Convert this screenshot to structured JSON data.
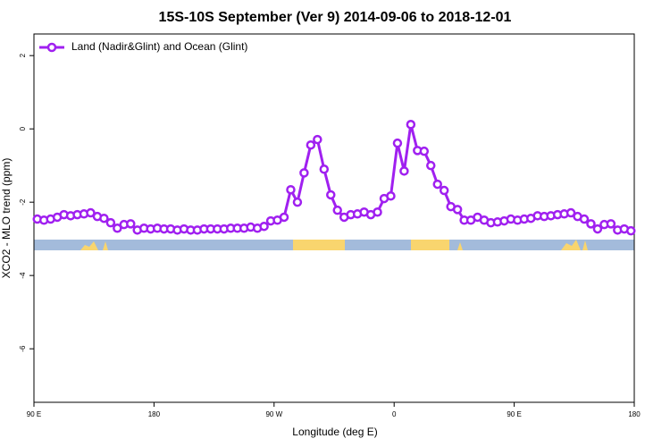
{
  "chart_data": {
    "type": "line",
    "title": "15S-10S September (Ver 9)   2014-09-06 to 2018-12-01",
    "x_label": "Longitude (deg E)",
    "y_label": "XCO2 - MLO trend (ppm)",
    "legend": "top-left",
    "xlim": [
      90,
      540
    ],
    "xticks": [
      {
        "value": 90,
        "label": "90 E"
      },
      180,
      {
        "value": 270,
        "label": "90 W"
      },
      {
        "value": 360,
        "label": "0"
      },
      {
        "value": 450,
        "label": "90 E"
      },
      {
        "value": 540,
        "label": "180"
      }
    ],
    "ylim": [
      -7.46,
      2.59
    ],
    "yticks": [
      -6,
      -4,
      -2,
      0,
      2
    ],
    "x": [
      92.5,
      97.5,
      102.5,
      107.5,
      112.5,
      117.5,
      122.5,
      127.5,
      132.5,
      137.5,
      142.5,
      147.5,
      152.5,
      157.5,
      162.5,
      167.5,
      172.5,
      177.5,
      182.5,
      187.5,
      192.5,
      197.5,
      202.5,
      207.5,
      212.5,
      217.5,
      222.5,
      227.5,
      232.5,
      237.5,
      242.5,
      247.5,
      252.5,
      257.5,
      262.5,
      267.5,
      272.5,
      277.5,
      282.5,
      287.5,
      292.5,
      297.5,
      302.5,
      307.5,
      312.5,
      317.5,
      322.5,
      327.5,
      332.5,
      337.5,
      342.5,
      347.5,
      352.5,
      357.5,
      362.5,
      367.5,
      372.5,
      377.5,
      382.5,
      387.5,
      392.5,
      397.5,
      402.5,
      407.5,
      412.5,
      417.5,
      422.5,
      427.5,
      432.5,
      437.5,
      442.5,
      447.5,
      452.5,
      457.5,
      462.5,
      467.5,
      472.5,
      477.5,
      482.5,
      487.5,
      492.5,
      497.5,
      502.5,
      507.5,
      512.5,
      517.5,
      522.5,
      527.5,
      532.5,
      537.5
    ],
    "series": [
      {
        "name": "Land (Nadir&Glint) and Ocean (Glint)",
        "color": "#a020f0",
        "values": [
          -2.46,
          -2.49,
          -2.46,
          -2.41,
          -2.34,
          -2.37,
          -2.34,
          -2.32,
          -2.29,
          -2.39,
          -2.44,
          -2.56,
          -2.71,
          -2.61,
          -2.59,
          -2.76,
          -2.71,
          -2.73,
          -2.71,
          -2.73,
          -2.73,
          -2.76,
          -2.73,
          -2.76,
          -2.76,
          -2.73,
          -2.73,
          -2.73,
          -2.73,
          -2.71,
          -2.71,
          -2.71,
          -2.68,
          -2.71,
          -2.66,
          -2.51,
          -2.49,
          -2.41,
          -1.66,
          -2.0,
          -1.2,
          -0.44,
          -0.29,
          -1.1,
          -1.8,
          -2.22,
          -2.41,
          -2.34,
          -2.32,
          -2.27,
          -2.34,
          -2.27,
          -1.9,
          -1.83,
          -0.39,
          -1.15,
          0.12,
          -0.59,
          -0.61,
          -1.0,
          -1.51,
          -1.68,
          -2.12,
          -2.2,
          -2.49,
          -2.49,
          -2.41,
          -2.49,
          -2.56,
          -2.54,
          -2.51,
          -2.46,
          -2.49,
          -2.46,
          -2.44,
          -2.37,
          -2.39,
          -2.37,
          -2.34,
          -2.32,
          -2.29,
          -2.39,
          -2.46,
          -2.59,
          -2.73,
          -2.61,
          -2.59,
          -2.76,
          -2.73,
          -2.78
        ]
      }
    ]
  }
}
